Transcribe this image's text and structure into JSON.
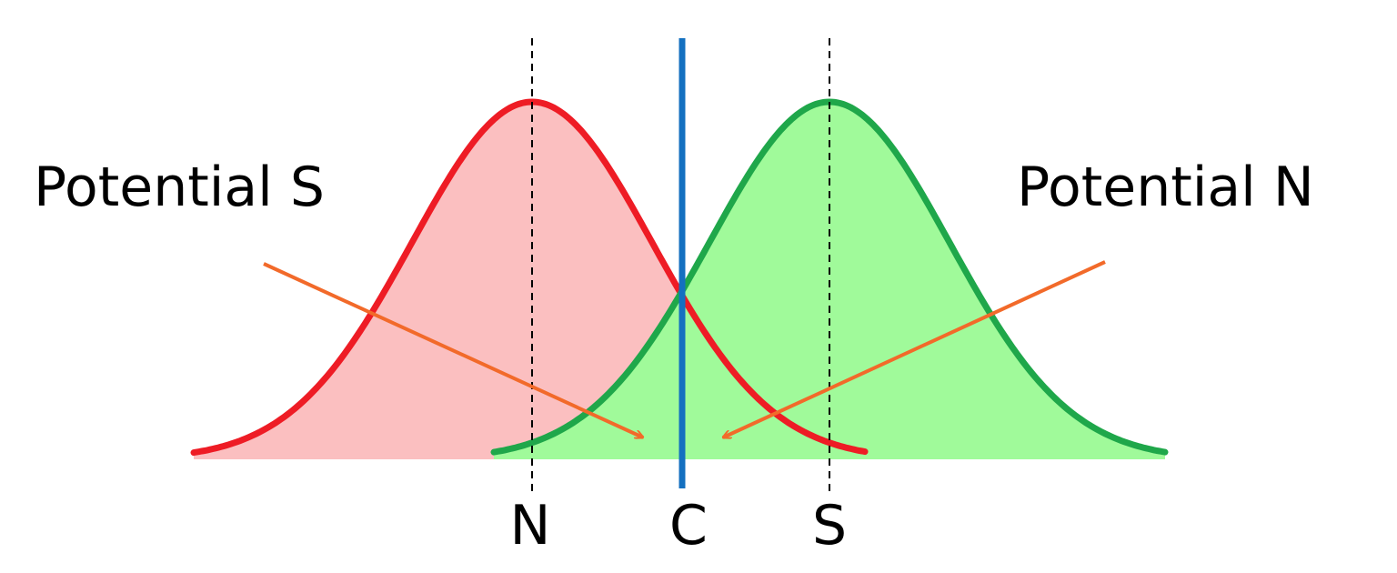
{
  "labels": {
    "left": "Potential S",
    "right": "Potential N"
  },
  "axis_labels": {
    "n": "N",
    "c": "C",
    "s": "S"
  }
}
